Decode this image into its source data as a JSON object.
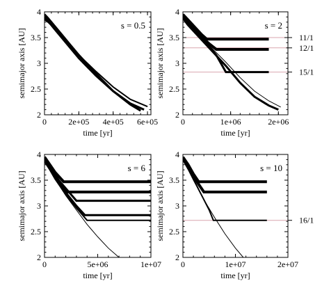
{
  "chart_data": [
    {
      "type": "line",
      "panel_label": "s = 0.5",
      "xlabel": "time [yr]",
      "ylabel": "semimajor axis  [AU]",
      "xlim": [
        0,
        620000
      ],
      "ylim": [
        2,
        4
      ],
      "xticks": [
        0,
        200000,
        400000,
        600000
      ],
      "xtick_labels": [
        "0",
        "2e+05",
        "4e+05",
        "6e+05"
      ],
      "yticks": [
        2,
        2.5,
        3,
        3.5,
        4
      ],
      "ytick_labels": [
        "2",
        "2.5",
        "3",
        "3.5",
        "4"
      ],
      "resonances": [],
      "series": [
        {
          "x": [
            0,
            20000,
            40000,
            60000,
            100000,
            150000,
            200000,
            300000,
            400000,
            500000,
            560000
          ],
          "y": [
            3.95,
            3.88,
            3.8,
            3.72,
            3.56,
            3.36,
            3.16,
            2.8,
            2.46,
            2.2,
            2.08
          ],
          "width": 3
        },
        {
          "x": [
            0,
            20000,
            40000,
            60000,
            100000,
            150000,
            200000,
            300000,
            400000,
            500000,
            580000
          ],
          "y": [
            3.9,
            3.82,
            3.74,
            3.66,
            3.5,
            3.3,
            3.1,
            2.76,
            2.46,
            2.22,
            2.1
          ],
          "width": 3
        },
        {
          "x": [
            0,
            20000,
            40000,
            60000,
            100000,
            150000,
            200000,
            300000,
            400000,
            500000,
            600000
          ],
          "y": [
            3.85,
            3.8,
            3.74,
            3.66,
            3.52,
            3.34,
            3.16,
            2.84,
            2.54,
            2.3,
            2.16
          ],
          "width": 2
        }
      ]
    },
    {
      "type": "line",
      "panel_label": "s = 2",
      "xlabel": "time  [yr]",
      "ylabel": "semimajor axis  [AU]",
      "xlim": [
        0,
        2200000
      ],
      "ylim": [
        2,
        4
      ],
      "xticks": [
        0,
        1000000,
        2000000
      ],
      "xtick_labels": [
        "0",
        "1e+06",
        "2e+06"
      ],
      "yticks": [
        2,
        2.5,
        3,
        3.5,
        4
      ],
      "ytick_labels": [
        "2",
        "2.5",
        "3",
        "3.5",
        "4"
      ],
      "resonances": [
        {
          "label": "11/1",
          "a": 3.5
        },
        {
          "label": "12/1",
          "a": 3.3
        },
        {
          "label": "15/1",
          "a": 2.83
        }
      ],
      "series": [
        {
          "x": [
            0,
            100000,
            250000,
            400000,
            500000,
            1800000
          ],
          "y": [
            3.95,
            3.85,
            3.7,
            3.55,
            3.47,
            3.47
          ],
          "width": 4
        },
        {
          "x": [
            0,
            100000,
            250000,
            400000,
            550000,
            700000,
            1800000
          ],
          "y": [
            3.92,
            3.8,
            3.64,
            3.5,
            3.38,
            3.27,
            3.27
          ],
          "width": 4
        },
        {
          "x": [
            0,
            100000,
            300000,
            500000,
            700000,
            900000,
            1800000
          ],
          "y": [
            3.9,
            3.78,
            3.58,
            3.38,
            3.16,
            2.83,
            2.83
          ],
          "width": 3
        },
        {
          "x": [
            0,
            100000,
            300000,
            500000,
            700000,
            900000,
            1200000,
            1500000,
            1800000,
            2000000
          ],
          "y": [
            3.88,
            3.75,
            3.55,
            3.35,
            3.15,
            2.95,
            2.62,
            2.35,
            2.18,
            2.1
          ],
          "width": 3
        },
        {
          "x": [
            0,
            100000,
            300000,
            600000,
            900000,
            1200000,
            1500000,
            1800000,
            2050000
          ],
          "y": [
            3.86,
            3.74,
            3.56,
            3.3,
            3.02,
            2.72,
            2.46,
            2.27,
            2.15
          ],
          "width": 1
        }
      ]
    },
    {
      "type": "line",
      "panel_label": "s = 6",
      "xlabel": "time  [yr]",
      "ylabel": "semimajor axis  [AU]",
      "xlim": [
        0,
        10000000
      ],
      "ylim": [
        2,
        4
      ],
      "xticks": [
        0,
        5000000,
        10000000
      ],
      "xtick_labels": [
        "0",
        "5e+06",
        "1e+07"
      ],
      "yticks": [
        2,
        2.5,
        3,
        3.5,
        4
      ],
      "ytick_labels": [
        "2",
        "2.5",
        "3",
        "3.5",
        "4"
      ],
      "resonances": [],
      "series": [
        {
          "x": [
            0,
            500000,
            1000000,
            1800000,
            10000000
          ],
          "y": [
            3.95,
            3.8,
            3.65,
            3.47,
            3.47
          ],
          "width": 4
        },
        {
          "x": [
            0,
            500000,
            1000000,
            1500000,
            2200000,
            10000000
          ],
          "y": [
            3.93,
            3.78,
            3.6,
            3.42,
            3.27,
            3.27
          ],
          "width": 4
        },
        {
          "x": [
            0,
            500000,
            1000000,
            2000000,
            3000000,
            10000000
          ],
          "y": [
            3.9,
            3.76,
            3.58,
            3.34,
            3.1,
            3.1
          ],
          "width": 3
        },
        {
          "x": [
            0,
            500000,
            1000000,
            2000000,
            3000000,
            3800000,
            10000000
          ],
          "y": [
            3.88,
            3.72,
            3.54,
            3.26,
            3.0,
            2.82,
            2.82
          ],
          "width": 3
        },
        {
          "x": [
            0,
            500000,
            1000000,
            2000000,
            3000000,
            4000000,
            10000000
          ],
          "y": [
            3.86,
            3.7,
            3.52,
            3.22,
            2.96,
            2.72,
            2.72
          ],
          "width": 2
        },
        {
          "x": [
            0,
            500000,
            1000000,
            2000000,
            3000000,
            4000000,
            5000000,
            6000000,
            7000000
          ],
          "y": [
            3.85,
            3.7,
            3.52,
            3.2,
            2.92,
            2.64,
            2.4,
            2.18,
            2.0
          ],
          "width": 1
        }
      ]
    },
    {
      "type": "line",
      "panel_label": "s = 10",
      "xlabel": "time  [yr]",
      "ylabel": "semimajor axis  [AU]",
      "xlim": [
        0,
        20000000
      ],
      "ylim": [
        2,
        4
      ],
      "xticks": [
        0,
        10000000,
        20000000
      ],
      "xtick_labels": [
        "0",
        "1e+07",
        "2e+07"
      ],
      "yticks": [
        2,
        2.5,
        3,
        3.5,
        4
      ],
      "ytick_labels": [
        "2",
        "2.5",
        "3",
        "3.5",
        "4"
      ],
      "resonances": [
        {
          "label": "16/1",
          "a": 2.72
        }
      ],
      "series": [
        {
          "x": [
            0,
            1000000,
            2000000,
            3000000,
            16000000
          ],
          "y": [
            3.95,
            3.8,
            3.62,
            3.47,
            3.47
          ],
          "width": 4
        },
        {
          "x": [
            0,
            1000000,
            2000000,
            3000000,
            4000000,
            16000000
          ],
          "y": [
            3.92,
            3.76,
            3.58,
            3.42,
            3.27,
            3.27
          ],
          "width": 4
        },
        {
          "x": [
            0,
            1000000,
            2000000,
            3000000,
            4000000,
            5000000,
            5800000,
            16000000
          ],
          "y": [
            3.9,
            3.72,
            3.52,
            3.32,
            3.12,
            2.92,
            2.72,
            2.72
          ],
          "width": 2
        },
        {
          "x": [
            0,
            1000000,
            2000000,
            4000000,
            6000000,
            8000000,
            10000000,
            11500000
          ],
          "y": [
            3.88,
            3.7,
            3.5,
            3.12,
            2.78,
            2.46,
            2.18,
            2.0
          ],
          "width": 1
        }
      ]
    }
  ]
}
